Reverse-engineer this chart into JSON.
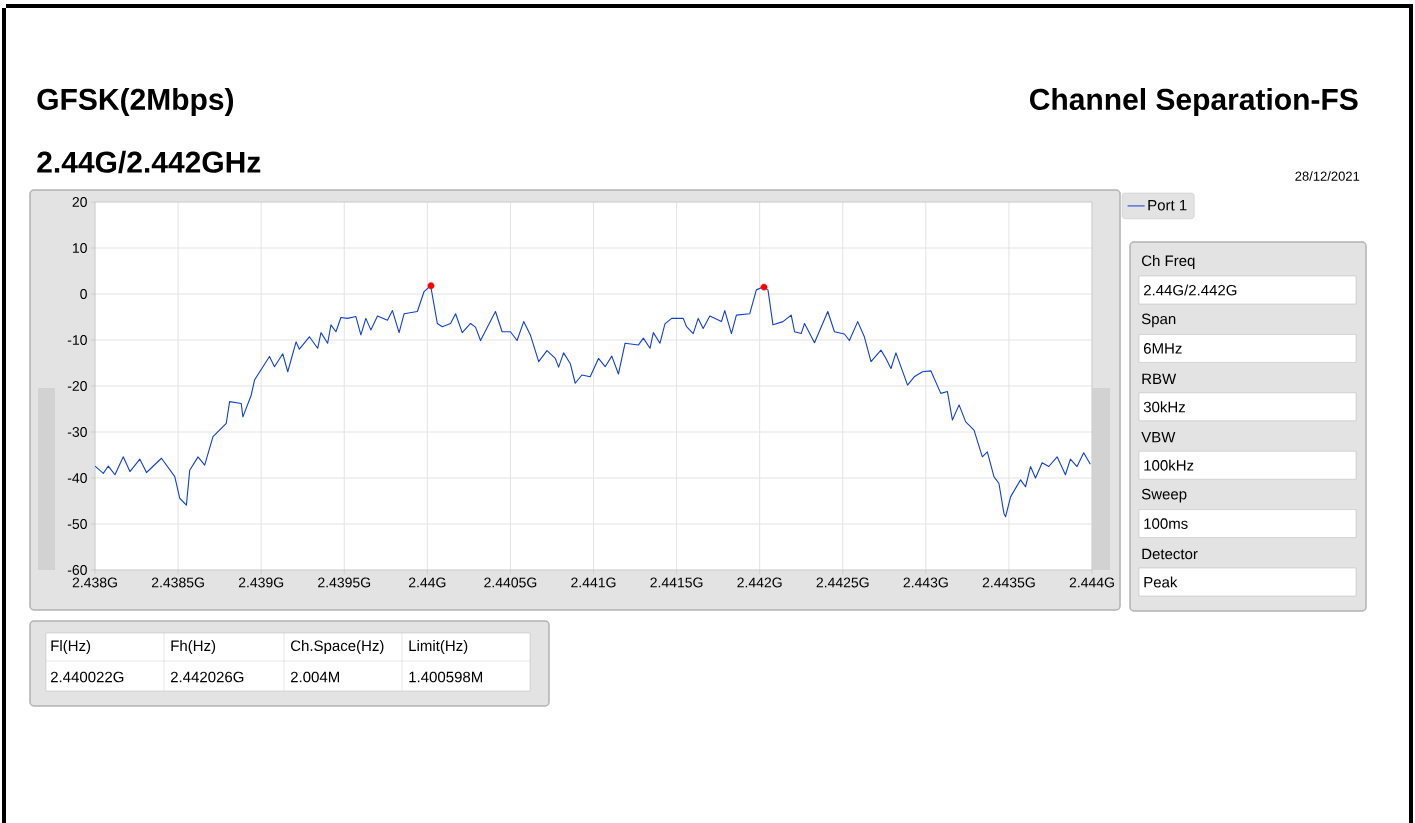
{
  "chart_data": {
    "type": "line",
    "title": "GFSK(2Mbps)",
    "subtitle": "2.44G/2.442GHz",
    "annotations": [
      "Channel Separation-FS",
      "28/12/2021",
      "Ch Freq",
      "2.44G/2.442G",
      "Span",
      "6MHz",
      "RBW",
      "30kHz",
      "VBW",
      "100kHz",
      "Sweep",
      "100ms",
      "Detector",
      "Peak",
      "Fl(Hz)",
      "Fh(Hz)",
      "Ch.Space(Hz)",
      "Limit(Hz)",
      "2.440022G",
      "2.442026G",
      "2.004M",
      "1.400598M"
    ],
    "xlim": [
      2.438,
      2.444
    ],
    "ylim": [
      -60,
      20
    ],
    "xticks": [
      {
        "value": 2.438,
        "label": "2.438G"
      },
      {
        "value": 2.4385,
        "label": "2.4385G"
      },
      {
        "value": 2.439,
        "label": "2.439G"
      },
      {
        "value": 2.4395,
        "label": "2.4395G"
      },
      {
        "value": 2.44,
        "label": "2.44G"
      },
      {
        "value": 2.4405,
        "label": "2.4405G"
      },
      {
        "value": 2.441,
        "label": "2.441G"
      },
      {
        "value": 2.4415,
        "label": "2.4415G"
      },
      {
        "value": 2.442,
        "label": "2.442G"
      },
      {
        "value": 2.4425,
        "label": "2.4425G"
      },
      {
        "value": 2.443,
        "label": "2.443G"
      },
      {
        "value": 2.4435,
        "label": "2.4435G"
      },
      {
        "value": 2.444,
        "label": "2.444G"
      }
    ],
    "yticks": [
      20,
      10,
      0,
      -10,
      -20,
      -30,
      -40,
      -50,
      -60
    ],
    "grid": true,
    "legend": "right",
    "series": [
      {
        "name": "Port 1",
        "color": "#1040d0",
        "x": [
          2.438,
          2.43805,
          2.43808,
          2.43812,
          2.43817,
          2.43821,
          2.43827,
          2.43831,
          2.4384,
          2.43848,
          2.43851,
          2.43855,
          2.43857,
          2.43862,
          2.43866,
          2.43871,
          2.43879,
          2.43881,
          2.43888,
          2.43889,
          2.43894,
          2.43896,
          2.43905,
          2.43908,
          2.43913,
          2.43916,
          2.43921,
          2.43923,
          2.43929,
          2.43934,
          2.43936,
          2.4394,
          2.43942,
          2.43945,
          2.43948,
          2.43952,
          2.43957,
          2.4396,
          2.43963,
          2.43966,
          2.4397,
          2.43976,
          2.43979,
          2.43983,
          2.43986,
          2.43994,
          2.43998,
          2.44002,
          2.44006,
          2.44009,
          2.44014,
          2.44017,
          2.44021,
          2.44026,
          2.44029,
          2.44032,
          2.44041,
          2.44045,
          2.4405,
          2.44054,
          2.44058,
          2.44062,
          2.44067,
          2.44072,
          2.44077,
          2.44079,
          2.44082,
          2.44086,
          2.44089,
          2.44093,
          2.44098,
          2.44103,
          2.44107,
          2.44111,
          2.44115,
          2.44119,
          2.44127,
          2.4413,
          2.44134,
          2.44136,
          2.4414,
          2.44143,
          2.44147,
          2.44154,
          2.44156,
          2.4416,
          2.44163,
          2.44166,
          2.4417,
          2.44177,
          2.44179,
          2.44183,
          2.44186,
          2.44194,
          2.44198,
          2.44202,
          2.44205,
          2.44208,
          2.44214,
          2.44219,
          2.44221,
          2.44225,
          2.44227,
          2.44233,
          2.44241,
          2.44245,
          2.44251,
          2.44254,
          2.44259,
          2.44263,
          2.44267,
          2.44273,
          2.44276,
          2.44279,
          2.44282,
          2.44289,
          2.44293,
          2.44298,
          2.44303,
          2.44309,
          2.44313,
          2.44316,
          2.4432,
          2.44324,
          2.44329,
          2.44334,
          2.44337,
          2.44341,
          2.44344,
          2.44347,
          2.44348,
          2.44351,
          2.44357,
          2.4436,
          2.44363,
          2.44366,
          2.4437,
          2.44374,
          2.44379,
          2.44384,
          2.44387,
          2.44391,
          2.44395,
          2.44399
        ],
        "values": [
          -37.4,
          -39,
          -37.4,
          -39.3,
          -35.4,
          -38.6,
          -35.9,
          -38.8,
          -35.7,
          -39.7,
          -44.4,
          -45.9,
          -38.3,
          -35.4,
          -37.2,
          -31,
          -28.1,
          -23.4,
          -23.8,
          -26.7,
          -22,
          -18.7,
          -13.6,
          -15.8,
          -13,
          -16.9,
          -10.4,
          -12,
          -9.3,
          -11.8,
          -8.4,
          -10.7,
          -6.7,
          -8.2,
          -5.1,
          -5.3,
          -4.9,
          -8.9,
          -5.3,
          -7.8,
          -4.8,
          -5.7,
          -3.6,
          -8.4,
          -4.3,
          -3.8,
          0.5,
          1.8,
          -6.4,
          -7.1,
          -6.4,
          -4.3,
          -8.4,
          -6.4,
          -7.2,
          -10.1,
          -3.8,
          -8.2,
          -8.2,
          -10.1,
          -6,
          -8.9,
          -14.7,
          -12.3,
          -14,
          -15.9,
          -12.8,
          -15.1,
          -19.4,
          -17.6,
          -18,
          -14,
          -15.8,
          -13.5,
          -17.4,
          -10.7,
          -11.1,
          -9.6,
          -11.8,
          -8.4,
          -10.7,
          -6.5,
          -5.3,
          -5.3,
          -7.1,
          -8.6,
          -5.3,
          -7.5,
          -4.8,
          -6,
          -3.6,
          -8.6,
          -4.6,
          -4.3,
          0.9,
          1.5,
          0.9,
          -6.7,
          -6,
          -4.6,
          -8.2,
          -8.6,
          -6.4,
          -10.6,
          -3.8,
          -8.2,
          -8.7,
          -10.1,
          -6,
          -9.3,
          -14.7,
          -12.2,
          -14,
          -16.2,
          -12.8,
          -19.8,
          -18,
          -16.9,
          -16.7,
          -21.6,
          -21.2,
          -27.4,
          -24.1,
          -27.8,
          -29.6,
          -35.4,
          -34.3,
          -39.7,
          -41.2,
          -47.7,
          -48.4,
          -44.1,
          -40.4,
          -41.9,
          -37.5,
          -40,
          -36.7,
          -37.5,
          -35.4,
          -39.3,
          -35.9,
          -37.5,
          -34.5,
          -37
        ]
      },
      {
        "type": "scatter",
        "color": "#ff0000",
        "marker": "circle",
        "x": [
          2.440022,
          2.442026
        ],
        "values": [
          1.8,
          1.5
        ]
      }
    ]
  }
}
